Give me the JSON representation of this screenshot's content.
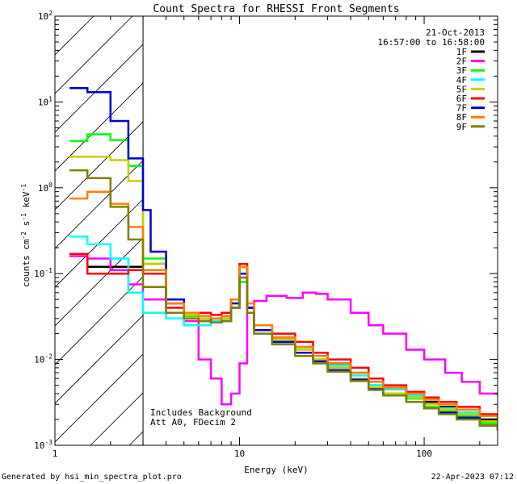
{
  "chart_data": {
    "type": "line",
    "step": true,
    "title": "Count Spectra for RHESSI Front Segments",
    "xlabel": "Energy (keV)",
    "ylabel_parts": {
      "base": "counts cm",
      "exp1": "-2",
      "mid": " s",
      "exp2": "-1",
      "mid2": " keV",
      "exp3": "-1"
    },
    "xscale": "log",
    "yscale": "log",
    "xlim": [
      1,
      250
    ],
    "ylim": [
      0.001,
      100
    ],
    "x_ticks": [
      {
        "value": 1,
        "label": "1"
      },
      {
        "value": 10,
        "label": "10"
      },
      {
        "value": 100,
        "label": "100"
      }
    ],
    "y_ticks": [
      {
        "value": 0.001,
        "base": "10",
        "exp": "-3"
      },
      {
        "value": 0.01,
        "base": "10",
        "exp": "-2"
      },
      {
        "value": 0.1,
        "base": "10",
        "exp": "-1"
      },
      {
        "value": 1,
        "base": "10",
        "exp": "0"
      },
      {
        "value": 10,
        "base": "10",
        "exp": "1"
      },
      {
        "value": 100,
        "base": "10",
        "exp": "2"
      }
    ],
    "excluded_region_max_keV": 3,
    "legend": {
      "placement": "top-right",
      "date": "21-Oct-2013",
      "time_range": "16:57:00 to 16:58:00"
    },
    "annotations": [
      "Includes Background",
      "Att A0, FDecim 2"
    ],
    "series": [
      {
        "name": "1F",
        "color": "#000000",
        "points": [
          [
            1.2,
            0.17
          ],
          [
            1.5,
            0.12
          ],
          [
            2,
            0.12
          ],
          [
            2.5,
            0.12
          ],
          [
            3,
            0.13
          ],
          [
            4,
            0.045
          ],
          [
            5,
            0.03
          ],
          [
            6,
            0.03
          ],
          [
            7,
            0.028
          ],
          [
            8,
            0.03
          ],
          [
            9,
            0.04
          ],
          [
            10,
            0.12
          ],
          [
            11,
            0.04
          ],
          [
            12,
            0.025
          ],
          [
            15,
            0.018
          ],
          [
            20,
            0.014
          ],
          [
            25,
            0.011
          ],
          [
            30,
            0.009
          ],
          [
            40,
            0.007
          ],
          [
            50,
            0.005
          ],
          [
            60,
            0.0045
          ],
          [
            80,
            0.0038
          ],
          [
            100,
            0.0032
          ],
          [
            120,
            0.0028
          ],
          [
            150,
            0.0024
          ],
          [
            200,
            0.002
          ],
          [
            250,
            0.0018
          ]
        ]
      },
      {
        "name": "2F",
        "color": "#ff00ff",
        "points": [
          [
            1.2,
            0.16
          ],
          [
            1.5,
            0.15
          ],
          [
            2,
            0.11
          ],
          [
            2.5,
            0.075
          ],
          [
            3,
            0.05
          ],
          [
            4,
            0.035
          ],
          [
            5,
            0.028
          ],
          [
            6,
            0.01
          ],
          [
            7,
            0.006
          ],
          [
            8,
            0.003
          ],
          [
            9,
            0.004
          ],
          [
            10,
            0.009
          ],
          [
            11,
            0.04
          ],
          [
            12,
            0.048
          ],
          [
            14,
            0.055
          ],
          [
            18,
            0.052
          ],
          [
            22,
            0.06
          ],
          [
            26,
            0.058
          ],
          [
            30,
            0.05
          ],
          [
            40,
            0.035
          ],
          [
            50,
            0.025
          ],
          [
            60,
            0.02
          ],
          [
            80,
            0.013
          ],
          [
            100,
            0.01
          ],
          [
            130,
            0.007
          ],
          [
            160,
            0.0055
          ],
          [
            200,
            0.004
          ],
          [
            250,
            0.0038
          ]
        ]
      },
      {
        "name": "3F",
        "color": "#00ff00",
        "points": [
          [
            1.2,
            3.5
          ],
          [
            1.5,
            4.2
          ],
          [
            2,
            3.6
          ],
          [
            2.5,
            1.8
          ],
          [
            3,
            0.15
          ],
          [
            4,
            0.05
          ],
          [
            5,
            0.032
          ],
          [
            6,
            0.03
          ],
          [
            7,
            0.03
          ],
          [
            8,
            0.032
          ],
          [
            9,
            0.05
          ],
          [
            10,
            0.08
          ],
          [
            11,
            0.04
          ],
          [
            12,
            0.022
          ],
          [
            15,
            0.016
          ],
          [
            20,
            0.012
          ],
          [
            25,
            0.01
          ],
          [
            30,
            0.008
          ],
          [
            40,
            0.006
          ],
          [
            50,
            0.0045
          ],
          [
            60,
            0.004
          ],
          [
            80,
            0.0035
          ],
          [
            100,
            0.0028
          ],
          [
            120,
            0.0025
          ],
          [
            150,
            0.0022
          ],
          [
            200,
            0.0018
          ],
          [
            250,
            0.0016
          ]
        ]
      },
      {
        "name": "4F",
        "color": "#00ffff",
        "points": [
          [
            1.2,
            0.27
          ],
          [
            1.5,
            0.22
          ],
          [
            2,
            0.15
          ],
          [
            2.5,
            0.06
          ],
          [
            3,
            0.035
          ],
          [
            4,
            0.03
          ],
          [
            5,
            0.025
          ],
          [
            6,
            0.025
          ],
          [
            7,
            0.028
          ],
          [
            8,
            0.03
          ],
          [
            9,
            0.045
          ],
          [
            10,
            0.09
          ],
          [
            11,
            0.035
          ],
          [
            12,
            0.02
          ],
          [
            15,
            0.015
          ],
          [
            20,
            0.012
          ],
          [
            25,
            0.01
          ],
          [
            30,
            0.0085
          ],
          [
            40,
            0.0065
          ],
          [
            50,
            0.005
          ],
          [
            60,
            0.0045
          ],
          [
            80,
            0.0038
          ],
          [
            100,
            0.003
          ],
          [
            120,
            0.0027
          ],
          [
            150,
            0.0024
          ],
          [
            200,
            0.0019
          ],
          [
            250,
            0.0017
          ]
        ]
      },
      {
        "name": "5F",
        "color": "#cccc00",
        "points": [
          [
            1.2,
            2.3
          ],
          [
            1.5,
            2.3
          ],
          [
            2,
            2.1
          ],
          [
            2.5,
            1.2
          ],
          [
            3,
            0.13
          ],
          [
            4,
            0.05
          ],
          [
            5,
            0.033
          ],
          [
            6,
            0.03
          ],
          [
            7,
            0.03
          ],
          [
            8,
            0.03
          ],
          [
            9,
            0.05
          ],
          [
            10,
            0.1
          ],
          [
            11,
            0.04
          ],
          [
            12,
            0.022
          ],
          [
            15,
            0.017
          ],
          [
            20,
            0.013
          ],
          [
            25,
            0.01
          ],
          [
            30,
            0.008
          ],
          [
            40,
            0.006
          ],
          [
            50,
            0.0047
          ],
          [
            60,
            0.004
          ],
          [
            80,
            0.0036
          ],
          [
            100,
            0.003
          ],
          [
            120,
            0.0026
          ],
          [
            150,
            0.0023
          ],
          [
            200,
            0.0019
          ],
          [
            250,
            0.0017
          ]
        ]
      },
      {
        "name": "6F",
        "color": "#ff0000",
        "points": [
          [
            1.2,
            0.17
          ],
          [
            1.5,
            0.1
          ],
          [
            2,
            0.1
          ],
          [
            2.5,
            0.11
          ],
          [
            3,
            0.1
          ],
          [
            4,
            0.04
          ],
          [
            5,
            0.035
          ],
          [
            6,
            0.035
          ],
          [
            7,
            0.033
          ],
          [
            8,
            0.035
          ],
          [
            9,
            0.05
          ],
          [
            10,
            0.13
          ],
          [
            11,
            0.04
          ],
          [
            12,
            0.025
          ],
          [
            15,
            0.02
          ],
          [
            20,
            0.016
          ],
          [
            25,
            0.012
          ],
          [
            30,
            0.01
          ],
          [
            40,
            0.008
          ],
          [
            50,
            0.006
          ],
          [
            60,
            0.005
          ],
          [
            80,
            0.0042
          ],
          [
            100,
            0.0036
          ],
          [
            120,
            0.0032
          ],
          [
            150,
            0.0028
          ],
          [
            200,
            0.0023
          ],
          [
            250,
            0.002
          ]
        ]
      },
      {
        "name": "7F",
        "color": "#0000cc",
        "points": [
          [
            1.2,
            14.5
          ],
          [
            1.5,
            13
          ],
          [
            2,
            6
          ],
          [
            2.5,
            2.2
          ],
          [
            3,
            0.55
          ],
          [
            3.3,
            0.18
          ],
          [
            4,
            0.05
          ],
          [
            5,
            0.03
          ],
          [
            6,
            0.028
          ],
          [
            7,
            0.027
          ],
          [
            8,
            0.028
          ],
          [
            9,
            0.045
          ],
          [
            10,
            0.1
          ],
          [
            11,
            0.04
          ],
          [
            12,
            0.022
          ],
          [
            15,
            0.016
          ],
          [
            20,
            0.012
          ],
          [
            25,
            0.0095
          ],
          [
            30,
            0.0075
          ],
          [
            40,
            0.0058
          ],
          [
            50,
            0.0045
          ],
          [
            60,
            0.0038
          ],
          [
            80,
            0.0032
          ],
          [
            100,
            0.0027
          ],
          [
            120,
            0.0024
          ],
          [
            150,
            0.0021
          ],
          [
            200,
            0.0017
          ],
          [
            250,
            0.0015
          ]
        ]
      },
      {
        "name": "8F",
        "color": "#ff7f00",
        "points": [
          [
            1.2,
            0.75
          ],
          [
            1.5,
            0.9
          ],
          [
            2,
            0.65
          ],
          [
            2.5,
            0.35
          ],
          [
            3,
            0.11
          ],
          [
            4,
            0.045
          ],
          [
            5,
            0.035
          ],
          [
            6,
            0.032
          ],
          [
            7,
            0.03
          ],
          [
            8,
            0.032
          ],
          [
            9,
            0.05
          ],
          [
            10,
            0.12
          ],
          [
            11,
            0.045
          ],
          [
            12,
            0.025
          ],
          [
            15,
            0.018
          ],
          [
            20,
            0.014
          ],
          [
            25,
            0.011
          ],
          [
            30,
            0.009
          ],
          [
            40,
            0.007
          ],
          [
            50,
            0.0055
          ],
          [
            60,
            0.0047
          ],
          [
            80,
            0.004
          ],
          [
            100,
            0.0034
          ],
          [
            120,
            0.003
          ],
          [
            150,
            0.0026
          ],
          [
            200,
            0.0022
          ],
          [
            250,
            0.002
          ]
        ]
      },
      {
        "name": "9F",
        "color": "#808000",
        "points": [
          [
            1.2,
            1.6
          ],
          [
            1.5,
            1.3
          ],
          [
            2,
            0.6
          ],
          [
            2.5,
            0.25
          ],
          [
            3,
            0.07
          ],
          [
            4,
            0.035
          ],
          [
            5,
            0.03
          ],
          [
            6,
            0.028
          ],
          [
            7,
            0.027
          ],
          [
            8,
            0.028
          ],
          [
            9,
            0.04
          ],
          [
            10,
            0.09
          ],
          [
            11,
            0.035
          ],
          [
            12,
            0.02
          ],
          [
            15,
            0.015
          ],
          [
            20,
            0.011
          ],
          [
            25,
            0.009
          ],
          [
            30,
            0.0072
          ],
          [
            40,
            0.0056
          ],
          [
            50,
            0.0044
          ],
          [
            60,
            0.0038
          ],
          [
            80,
            0.0032
          ],
          [
            100,
            0.0027
          ],
          [
            120,
            0.0023
          ],
          [
            150,
            0.002
          ],
          [
            200,
            0.0017
          ],
          [
            250,
            0.0015
          ]
        ]
      }
    ]
  },
  "footer": {
    "generated_by": "Generated by hsi_min_spectra_plot.pro",
    "timestamp": "22-Apr-2023 07:12"
  }
}
